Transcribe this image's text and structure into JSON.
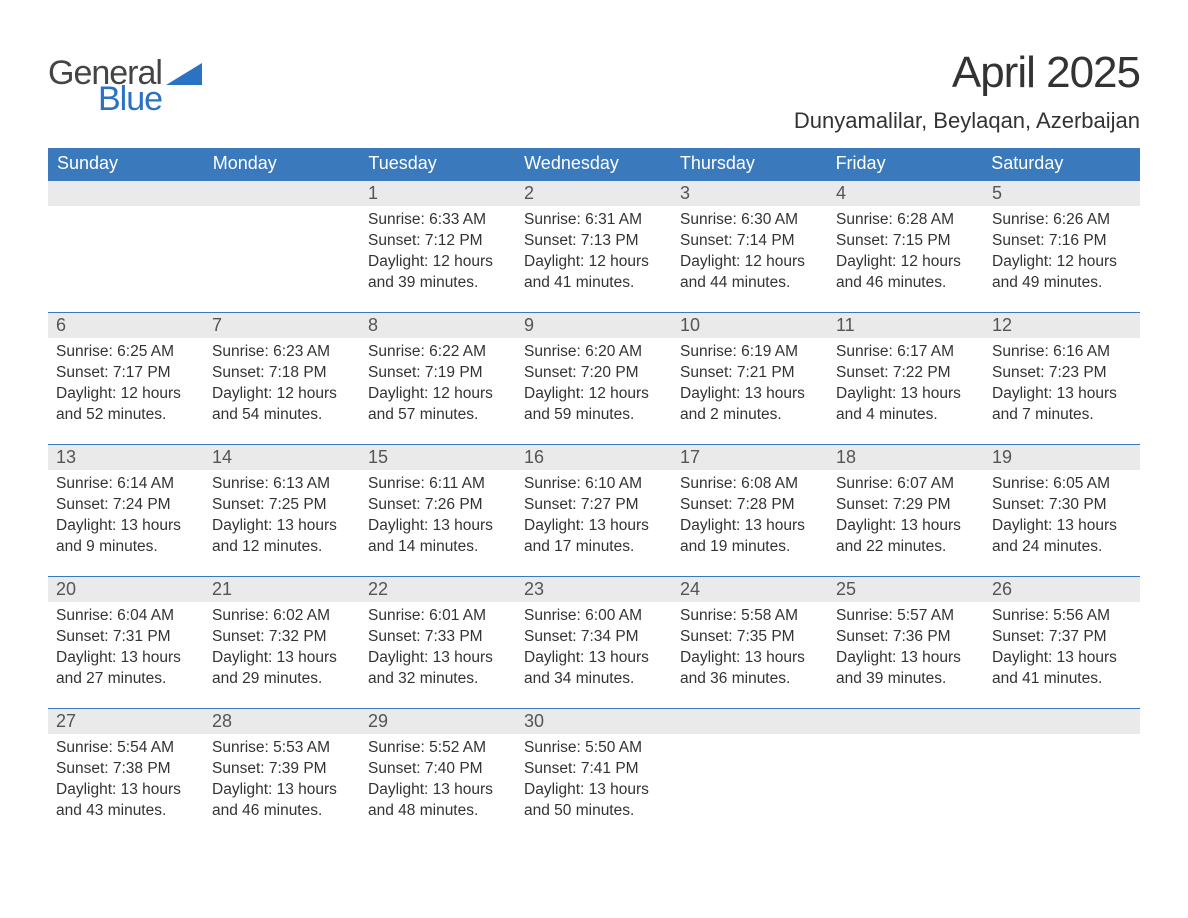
{
  "brand": {
    "word1": "General",
    "word2": "Blue",
    "tri_color": "#2b72c4",
    "text_color_dark": "#444444",
    "text_color_accent": "#2b72c4"
  },
  "header": {
    "month_title": "April 2025",
    "location": "Dunyamalilar, Beylaqan, Azerbaijan"
  },
  "colors": {
    "header_bg": "#3b79bd",
    "header_text": "#ffffff",
    "date_row_bg": "#eaeaea",
    "date_text": "#555555",
    "body_text": "#333333",
    "week_rule": "#3b79bd",
    "page_bg": "#ffffff"
  },
  "dow": [
    "Sunday",
    "Monday",
    "Tuesday",
    "Wednesday",
    "Thursday",
    "Friday",
    "Saturday"
  ],
  "weeks": [
    {
      "nums": [
        "",
        "",
        "1",
        "2",
        "3",
        "4",
        "5"
      ],
      "days": [
        null,
        null,
        {
          "sunrise": "6:33 AM",
          "sunset": "7:12 PM",
          "daylight": "12 hours and 39 minutes."
        },
        {
          "sunrise": "6:31 AM",
          "sunset": "7:13 PM",
          "daylight": "12 hours and 41 minutes."
        },
        {
          "sunrise": "6:30 AM",
          "sunset": "7:14 PM",
          "daylight": "12 hours and 44 minutes."
        },
        {
          "sunrise": "6:28 AM",
          "sunset": "7:15 PM",
          "daylight": "12 hours and 46 minutes."
        },
        {
          "sunrise": "6:26 AM",
          "sunset": "7:16 PM",
          "daylight": "12 hours and 49 minutes."
        }
      ]
    },
    {
      "nums": [
        "6",
        "7",
        "8",
        "9",
        "10",
        "11",
        "12"
      ],
      "days": [
        {
          "sunrise": "6:25 AM",
          "sunset": "7:17 PM",
          "daylight": "12 hours and 52 minutes."
        },
        {
          "sunrise": "6:23 AM",
          "sunset": "7:18 PM",
          "daylight": "12 hours and 54 minutes."
        },
        {
          "sunrise": "6:22 AM",
          "sunset": "7:19 PM",
          "daylight": "12 hours and 57 minutes."
        },
        {
          "sunrise": "6:20 AM",
          "sunset": "7:20 PM",
          "daylight": "12 hours and 59 minutes."
        },
        {
          "sunrise": "6:19 AM",
          "sunset": "7:21 PM",
          "daylight": "13 hours and 2 minutes."
        },
        {
          "sunrise": "6:17 AM",
          "sunset": "7:22 PM",
          "daylight": "13 hours and 4 minutes."
        },
        {
          "sunrise": "6:16 AM",
          "sunset": "7:23 PM",
          "daylight": "13 hours and 7 minutes."
        }
      ]
    },
    {
      "nums": [
        "13",
        "14",
        "15",
        "16",
        "17",
        "18",
        "19"
      ],
      "days": [
        {
          "sunrise": "6:14 AM",
          "sunset": "7:24 PM",
          "daylight": "13 hours and 9 minutes."
        },
        {
          "sunrise": "6:13 AM",
          "sunset": "7:25 PM",
          "daylight": "13 hours and 12 minutes."
        },
        {
          "sunrise": "6:11 AM",
          "sunset": "7:26 PM",
          "daylight": "13 hours and 14 minutes."
        },
        {
          "sunrise": "6:10 AM",
          "sunset": "7:27 PM",
          "daylight": "13 hours and 17 minutes."
        },
        {
          "sunrise": "6:08 AM",
          "sunset": "7:28 PM",
          "daylight": "13 hours and 19 minutes."
        },
        {
          "sunrise": "6:07 AM",
          "sunset": "7:29 PM",
          "daylight": "13 hours and 22 minutes."
        },
        {
          "sunrise": "6:05 AM",
          "sunset": "7:30 PM",
          "daylight": "13 hours and 24 minutes."
        }
      ]
    },
    {
      "nums": [
        "20",
        "21",
        "22",
        "23",
        "24",
        "25",
        "26"
      ],
      "days": [
        {
          "sunrise": "6:04 AM",
          "sunset": "7:31 PM",
          "daylight": "13 hours and 27 minutes."
        },
        {
          "sunrise": "6:02 AM",
          "sunset": "7:32 PM",
          "daylight": "13 hours and 29 minutes."
        },
        {
          "sunrise": "6:01 AM",
          "sunset": "7:33 PM",
          "daylight": "13 hours and 32 minutes."
        },
        {
          "sunrise": "6:00 AM",
          "sunset": "7:34 PM",
          "daylight": "13 hours and 34 minutes."
        },
        {
          "sunrise": "5:58 AM",
          "sunset": "7:35 PM",
          "daylight": "13 hours and 36 minutes."
        },
        {
          "sunrise": "5:57 AM",
          "sunset": "7:36 PM",
          "daylight": "13 hours and 39 minutes."
        },
        {
          "sunrise": "5:56 AM",
          "sunset": "7:37 PM",
          "daylight": "13 hours and 41 minutes."
        }
      ]
    },
    {
      "nums": [
        "27",
        "28",
        "29",
        "30",
        "",
        "",
        ""
      ],
      "days": [
        {
          "sunrise": "5:54 AM",
          "sunset": "7:38 PM",
          "daylight": "13 hours and 43 minutes."
        },
        {
          "sunrise": "5:53 AM",
          "sunset": "7:39 PM",
          "daylight": "13 hours and 46 minutes."
        },
        {
          "sunrise": "5:52 AM",
          "sunset": "7:40 PM",
          "daylight": "13 hours and 48 minutes."
        },
        {
          "sunrise": "5:50 AM",
          "sunset": "7:41 PM",
          "daylight": "13 hours and 50 minutes."
        },
        null,
        null,
        null
      ]
    }
  ],
  "labels": {
    "sunrise": "Sunrise: ",
    "sunset": "Sunset: ",
    "daylight": "Daylight: "
  }
}
